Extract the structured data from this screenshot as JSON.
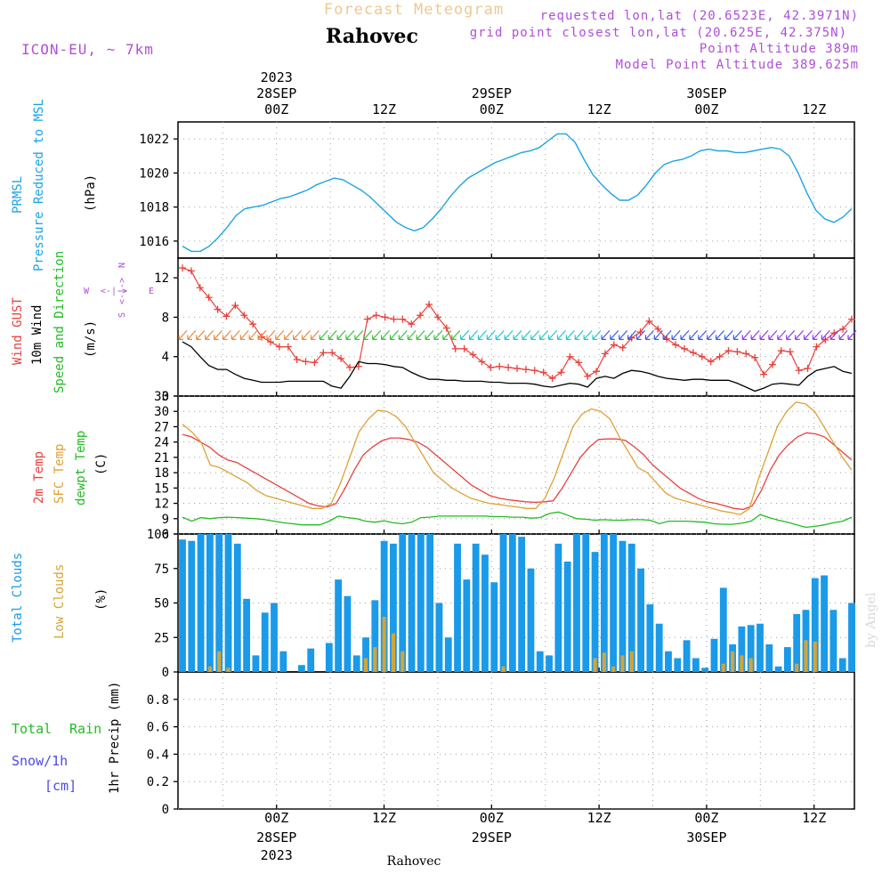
{
  "header": {
    "title": "Forecast Meteogram",
    "location": "Rahovec",
    "model": "ICON-EU, ~ 7km",
    "requested": "requested lon,lat (20.6523E, 42.3971N)",
    "gridpoint": "grid point closest lon,lat (20.625E, 42.375N)",
    "point_alt": "Point Altitude 389m",
    "model_alt": "Model Point Altitude 389.625m",
    "footer_location": "Rahovec",
    "credit": "by Angel"
  },
  "colors": {
    "pressure": "#1aa3e6",
    "gust": "#e8413c",
    "wind": "#000000",
    "temp2m": "#e8413c",
    "sfc": "#e0a030",
    "dewpt": "#22bb22",
    "total_clouds": "#1a9ae8",
    "low_clouds": "#d4a437",
    "title": "#f0c890",
    "meta": "#b04ed8"
  },
  "chart_data": [
    {
      "type": "line",
      "panel": "pressure",
      "ylabel_main": "PRMSL",
      "ylabel_sub": "Pressure Reduced to MSL",
      "unit": "(hPa)",
      "ylim": [
        1015,
        1023
      ],
      "yticks": [
        "1016",
        "1018",
        "1020",
        "1022"
      ],
      "x": [
        0,
        1,
        2,
        3,
        4,
        5,
        6,
        7,
        8,
        9,
        10,
        11,
        12,
        13,
        14,
        15,
        16,
        17,
        18,
        19,
        20,
        21,
        22,
        23,
        24,
        25,
        26,
        27,
        28,
        29,
        30,
        31,
        32,
        33,
        34,
        35,
        36,
        37,
        38,
        39,
        40,
        41,
        42,
        43,
        44,
        45,
        46,
        47,
        48,
        49,
        50,
        51,
        52,
        53,
        54,
        55,
        56,
        57,
        58,
        59,
        60,
        61,
        62,
        63,
        64,
        65,
        66,
        67,
        68,
        69,
        70,
        71,
        72,
        73,
        74,
        75
      ],
      "values": [
        1015.7,
        1015.4,
        1015.4,
        1015.7,
        1016.2,
        1016.8,
        1017.5,
        1017.9,
        1018.0,
        1018.1,
        1018.3,
        1018.5,
        1018.6,
        1018.8,
        1019.0,
        1019.3,
        1019.5,
        1019.7,
        1019.6,
        1019.3,
        1019.0,
        1018.6,
        1018.1,
        1017.6,
        1017.1,
        1016.8,
        1016.6,
        1016.8,
        1017.3,
        1017.9,
        1018.6,
        1019.2,
        1019.7,
        1020.0,
        1020.3,
        1020.6,
        1020.8,
        1021.0,
        1021.2,
        1021.3,
        1021.5,
        1021.9,
        1022.3,
        1022.3,
        1021.8,
        1020.8,
        1019.9,
        1019.3,
        1018.8,
        1018.4,
        1018.4,
        1018.7,
        1019.3,
        1020.0,
        1020.5,
        1020.7,
        1020.8,
        1021.0,
        1021.3,
        1021.4,
        1021.3,
        1021.3,
        1021.2,
        1021.2,
        1021.3,
        1021.4,
        1021.5,
        1021.4,
        1021.0,
        1020.0,
        1018.8,
        1017.8,
        1017.3,
        1017.1,
        1017.4,
        1017.9
      ]
    },
    {
      "type": "line",
      "panel": "wind",
      "ylabel_gust": "Wind GUST",
      "ylabel_wind": "10m Wind",
      "ylabel_dir": "Speed and Direction",
      "unit": "(m/s)",
      "compass": {
        "n": "N",
        "s": "S",
        "w": "W",
        "e": "E",
        "arrow": "<-|->"
      },
      "ylim": [
        0,
        14
      ],
      "yticks": [
        "0",
        "4",
        "8",
        "12"
      ],
      "series": [
        {
          "name": "Wind GUST",
          "values": [
            13.0,
            12.7,
            11.0,
            10.0,
            8.8,
            8.1,
            9.2,
            8.2,
            7.3,
            6.0,
            5.5,
            5.0,
            5.0,
            3.7,
            3.5,
            3.4,
            4.4,
            4.4,
            3.8,
            2.9,
            3.0,
            7.8,
            8.2,
            8.0,
            7.8,
            7.8,
            7.3,
            8.2,
            9.3,
            8.0,
            6.9,
            4.8,
            4.8,
            4.2,
            3.5,
            2.9,
            3.0,
            2.9,
            2.8,
            2.7,
            2.6,
            2.4,
            1.8,
            2.4,
            4.0,
            3.4,
            2.0,
            2.5,
            4.3,
            5.2,
            4.9,
            5.9,
            6.5,
            7.6,
            6.8,
            5.8,
            5.2,
            4.8,
            4.4,
            4.0,
            3.5,
            4.0,
            4.6,
            4.5,
            4.3,
            3.9,
            2.2,
            3.2,
            4.6,
            4.5,
            2.6,
            2.8,
            5.0,
            5.7,
            6.4,
            6.8,
            7.8
          ]
        },
        {
          "name": "10m Wind",
          "values": [
            5.5,
            5.0,
            4.0,
            3.1,
            2.7,
            2.7,
            2.2,
            1.8,
            1.6,
            1.4,
            1.4,
            1.4,
            1.5,
            1.5,
            1.5,
            1.5,
            1.5,
            1.0,
            0.8,
            2.0,
            3.5,
            3.3,
            3.3,
            3.2,
            3.0,
            2.9,
            2.4,
            2.0,
            1.7,
            1.7,
            1.6,
            1.6,
            1.5,
            1.5,
            1.5,
            1.4,
            1.4,
            1.3,
            1.3,
            1.3,
            1.2,
            1.0,
            0.9,
            1.1,
            1.3,
            1.2,
            0.9,
            1.8,
            2.0,
            1.8,
            2.3,
            2.6,
            2.5,
            2.3,
            2.0,
            1.8,
            1.7,
            1.6,
            1.7,
            1.7,
            1.6,
            1.6,
            1.6,
            1.3,
            0.9,
            0.5,
            0.8,
            1.2,
            1.3,
            1.2,
            1.1,
            2.0,
            2.6,
            2.8,
            3.0,
            2.5,
            2.3
          ]
        }
      ]
    },
    {
      "type": "line",
      "panel": "temperature",
      "ylabel_t2m": "2m Temp",
      "ylabel_sfc": "SFC Temp",
      "ylabel_dew": "dewpt Temp",
      "unit": "(C)",
      "ylim": [
        6,
        33
      ],
      "yticks": [
        "6",
        "9",
        "12",
        "15",
        "18",
        "21",
        "24",
        "27",
        "30",
        "33"
      ],
      "series": [
        {
          "name": "2m Temp",
          "values": [
            25.5,
            25.0,
            24.0,
            23.0,
            21.5,
            20.5,
            20.0,
            19.0,
            18.0,
            17.0,
            16.0,
            15.0,
            14.0,
            13.0,
            12.0,
            11.5,
            11.3,
            12.0,
            15.0,
            18.5,
            21.5,
            23.0,
            24.2,
            24.8,
            24.8,
            24.5,
            24.0,
            23.0,
            21.5,
            20.0,
            18.5,
            17.0,
            15.5,
            14.5,
            13.5,
            13.0,
            12.7,
            12.5,
            12.3,
            12.2,
            12.3,
            12.5,
            15.0,
            18.0,
            21.0,
            23.0,
            24.5,
            24.6,
            24.6,
            24.3,
            23.0,
            21.5,
            19.5,
            18.0,
            16.5,
            15.0,
            14.0,
            13.0,
            12.3,
            12.0,
            11.5,
            11.0,
            10.8,
            11.5,
            14.5,
            18.5,
            21.5,
            23.5,
            25.0,
            25.8,
            25.6,
            25.0,
            23.5,
            22.0,
            20.5
          ]
        },
        {
          "name": "SFC Temp",
          "values": [
            27.5,
            26.0,
            24.0,
            19.5,
            19.0,
            18.0,
            17.0,
            16.0,
            14.5,
            13.5,
            13.0,
            12.5,
            12.0,
            11.5,
            11.0,
            11.0,
            12.0,
            16.0,
            21.0,
            26.0,
            28.5,
            30.2,
            30.0,
            29.0,
            27.0,
            24.0,
            21.0,
            18.0,
            16.5,
            15.0,
            14.0,
            13.0,
            12.5,
            12.0,
            11.8,
            11.5,
            11.3,
            11.0,
            11.0,
            13.0,
            17.0,
            22.0,
            27.0,
            29.5,
            30.5,
            30.0,
            28.5,
            25.0,
            22.0,
            19.0,
            18.0,
            16.0,
            14.0,
            13.0,
            12.5,
            12.0,
            11.5,
            11.0,
            10.5,
            10.2,
            9.8,
            11.0,
            17.0,
            22.0,
            27.0,
            30.0,
            31.8,
            31.5,
            30.0,
            27.0,
            24.0,
            21.0,
            18.5
          ]
        },
        {
          "name": "dewpt Temp",
          "values": [
            9.3,
            8.5,
            9.2,
            9.0,
            9.2,
            9.3,
            9.2,
            9.1,
            9.0,
            8.8,
            8.5,
            8.2,
            8.0,
            7.8,
            7.8,
            7.8,
            8.5,
            9.5,
            9.2,
            9.0,
            8.5,
            8.3,
            8.6,
            8.2,
            8.0,
            8.3,
            9.2,
            9.3,
            9.5,
            9.5,
            9.5,
            9.5,
            9.5,
            9.5,
            9.4,
            9.4,
            9.3,
            9.3,
            9.1,
            9.2,
            10.0,
            10.3,
            9.7,
            9.0,
            8.9,
            8.7,
            8.8,
            8.7,
            8.7,
            8.8,
            8.8,
            8.7,
            8.0,
            8.5,
            8.5,
            8.5,
            8.4,
            8.3,
            8.0,
            7.9,
            7.9,
            8.1,
            8.5,
            9.8,
            9.2,
            8.7,
            8.3,
            7.8,
            7.3,
            7.5,
            7.8,
            8.2,
            8.5,
            9.3
          ]
        }
      ]
    },
    {
      "type": "bar",
      "panel": "clouds",
      "ylabel_total": "Total Clouds",
      "ylabel_low": "Low Clouds",
      "unit": "(%)",
      "ylim": [
        0,
        100
      ],
      "yticks": [
        "0",
        "25",
        "50",
        "75",
        "100"
      ],
      "series": [
        {
          "name": "Total Clouds",
          "values": [
            96,
            95,
            100,
            100,
            100,
            100,
            93,
            53,
            12,
            43,
            50,
            15,
            0,
            5,
            17,
            0,
            21,
            67,
            55,
            12,
            25,
            52,
            95,
            93,
            100,
            100,
            100,
            100,
            50,
            25,
            93,
            67,
            93,
            85,
            65,
            100,
            100,
            98,
            75,
            15,
            12,
            93,
            80,
            100,
            100,
            87,
            100,
            100,
            95,
            93,
            75,
            49,
            35,
            15,
            10,
            23,
            10,
            3,
            24,
            61,
            20,
            33,
            34,
            35,
            20,
            4,
            18,
            42,
            45,
            68,
            70,
            45,
            10,
            50
          ]
        },
        {
          "name": "Low Clouds",
          "values": [
            0,
            0,
            0,
            4,
            15,
            3,
            0,
            0,
            0,
            0,
            0,
            0,
            0,
            0,
            0,
            0,
            0,
            0,
            0,
            0,
            10,
            18,
            40,
            28,
            15,
            0,
            0,
            0,
            0,
            0,
            0,
            0,
            0,
            0,
            0,
            4,
            0,
            0,
            0,
            0,
            0,
            0,
            0,
            0,
            0,
            10,
            14,
            4,
            12,
            15,
            0,
            0,
            0,
            0,
            0,
            0,
            0,
            0,
            0,
            6,
            15,
            12,
            10,
            0,
            0,
            0,
            0,
            6,
            23,
            22,
            0,
            0,
            0,
            0
          ]
        }
      ]
    },
    {
      "type": "line",
      "panel": "precip",
      "ylabel": "1hr Precip (mm)",
      "legend_total": "Total",
      "legend_rain": "Rain",
      "legend_snow": "Snow/1h",
      "legend_cm": "[cm]",
      "ylim": [
        0,
        1
      ],
      "yticks": [
        "0",
        "0.2",
        "0.4",
        "0.6",
        "0.8"
      ],
      "values": [
        0,
        0,
        0,
        0,
        0,
        0,
        0,
        0,
        0,
        0,
        0,
        0,
        0,
        0,
        0,
        0,
        0,
        0,
        0,
        0,
        0,
        0,
        0,
        0,
        0,
        0,
        0,
        0,
        0,
        0,
        0,
        0,
        0,
        0,
        0,
        0,
        0,
        0,
        0,
        0,
        0,
        0,
        0,
        0,
        0,
        0,
        0,
        0,
        0,
        0,
        0,
        0,
        0,
        0,
        0,
        0,
        0,
        0,
        0,
        0,
        0,
        0,
        0,
        0,
        0,
        0,
        0,
        0,
        0,
        0,
        0,
        0,
        0,
        0,
        0
      ]
    }
  ],
  "time_axis": {
    "x_range_hours": [
      -11,
      64.5
    ],
    "major_hours": [
      0,
      12,
      24,
      36,
      48,
      60
    ],
    "hour_labels": [
      "00Z",
      "12Z",
      "00Z",
      "12Z",
      "00Z",
      "12Z"
    ],
    "dates": [
      {
        "hour": 0,
        "date": "28SEP",
        "year": "2023"
      },
      {
        "hour": 24,
        "date": "29SEP",
        "year": ""
      },
      {
        "hour": 48,
        "date": "30SEP",
        "year": ""
      }
    ]
  }
}
